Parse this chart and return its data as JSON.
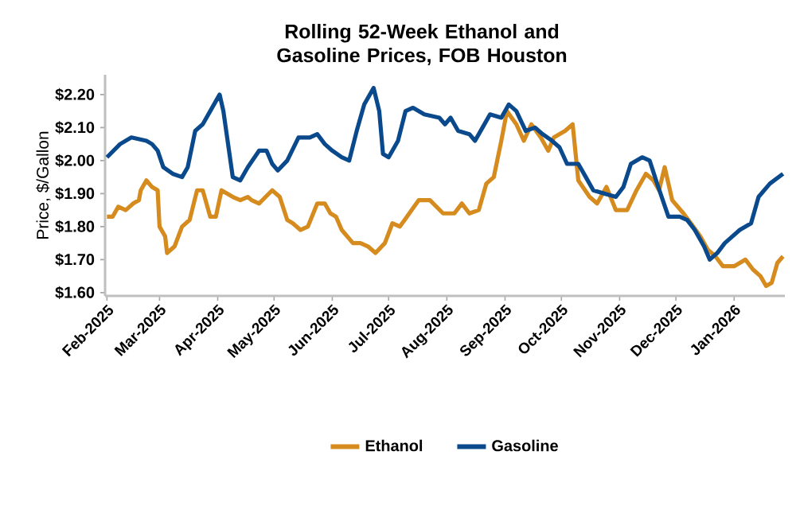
{
  "chart_data": {
    "type": "line",
    "title": "Rolling 52-Week Ethanol and Gasoline Prices, FOB Houston",
    "ylabel": "Price, $/Gallon",
    "xlim": [
      "2025-01-31",
      "2026-01-28"
    ],
    "ylim": [
      1.59,
      2.26
    ],
    "xticks": [
      {
        "value": "2025-02-01",
        "label": "Feb-2025"
      },
      {
        "value": "2025-03-01",
        "label": "Mar-2025"
      },
      {
        "value": "2025-04-01",
        "label": "Apr-2025"
      },
      {
        "value": "2025-05-01",
        "label": "May-2025"
      },
      {
        "value": "2025-06-01",
        "label": "Jun-2025"
      },
      {
        "value": "2025-07-01",
        "label": "Jul-2025"
      },
      {
        "value": "2025-08-01",
        "label": "Aug-2025"
      },
      {
        "value": "2025-09-01",
        "label": "Sep-2025"
      },
      {
        "value": "2025-10-01",
        "label": "Oct-2025"
      },
      {
        "value": "2025-11-01",
        "label": "Nov-2025"
      },
      {
        "value": "2025-12-01",
        "label": "Dec-2025"
      },
      {
        "value": "2026-01-01",
        "label": "Jan-2026"
      }
    ],
    "yticks": [
      {
        "value": 1.6,
        "label": "$1.60"
      },
      {
        "value": 1.7,
        "label": "$1.70"
      },
      {
        "value": 1.8,
        "label": "$1.80"
      },
      {
        "value": 1.9,
        "label": "$1.90"
      },
      {
        "value": 2.0,
        "label": "$2.00"
      },
      {
        "value": 2.1,
        "label": "$2.10"
      },
      {
        "value": 2.2,
        "label": "$2.20"
      }
    ],
    "legend": "bottom",
    "grid": false,
    "marker": "none",
    "line_style": "solid",
    "series": [
      {
        "name": "Ethanol",
        "color": "#d68b1f",
        "x": [
          "2025-02-01",
          "2025-02-04",
          "2025-02-07",
          "2025-02-11",
          "2025-02-15",
          "2025-02-18",
          "2025-02-19",
          "2025-02-22",
          "2025-02-25",
          "2025-02-28",
          "2025-03-01",
          "2025-03-04",
          "2025-03-05",
          "2025-03-09",
          "2025-03-13",
          "2025-03-17",
          "2025-03-21",
          "2025-03-24",
          "2025-03-28",
          "2025-03-31",
          "2025-04-03",
          "2025-04-09",
          "2025-04-13",
          "2025-04-17",
          "2025-04-19",
          "2025-04-23",
          "2025-04-30",
          "2025-05-04",
          "2025-05-08",
          "2025-05-11",
          "2025-05-15",
          "2025-05-19",
          "2025-05-24",
          "2025-05-28",
          "2025-05-31",
          "2025-06-03",
          "2025-06-06",
          "2025-06-12",
          "2025-06-16",
          "2025-06-20",
          "2025-06-24",
          "2025-06-29",
          "2025-07-03",
          "2025-07-07",
          "2025-07-12",
          "2025-07-17",
          "2025-07-23",
          "2025-07-30",
          "2025-08-05",
          "2025-08-09",
          "2025-08-13",
          "2025-08-18",
          "2025-08-22",
          "2025-08-26",
          "2025-08-30",
          "2025-09-02",
          "2025-09-07",
          "2025-09-11",
          "2025-09-15",
          "2025-09-20",
          "2025-09-24",
          "2025-09-27",
          "2025-10-03",
          "2025-10-07",
          "2025-10-10",
          "2025-10-16",
          "2025-10-20",
          "2025-10-25",
          "2025-10-30",
          "2025-11-05",
          "2025-11-10",
          "2025-11-15",
          "2025-11-19",
          "2025-11-22",
          "2025-11-25",
          "2025-11-29",
          "2025-12-05",
          "2025-12-09",
          "2025-12-14",
          "2025-12-18",
          "2025-12-22",
          "2025-12-26",
          "2026-01-01",
          "2026-01-07",
          "2026-01-11",
          "2026-01-15",
          "2026-01-18",
          "2026-01-21",
          "2026-01-24",
          "2026-01-27"
        ],
        "values": [
          1.83,
          1.83,
          1.86,
          1.85,
          1.87,
          1.88,
          1.91,
          1.94,
          1.92,
          1.91,
          1.8,
          1.77,
          1.72,
          1.74,
          1.8,
          1.82,
          1.91,
          1.91,
          1.83,
          1.83,
          1.91,
          1.89,
          1.88,
          1.89,
          1.88,
          1.87,
          1.91,
          1.89,
          1.82,
          1.81,
          1.79,
          1.8,
          1.87,
          1.87,
          1.84,
          1.83,
          1.79,
          1.75,
          1.75,
          1.74,
          1.72,
          1.75,
          1.81,
          1.8,
          1.84,
          1.88,
          1.88,
          1.84,
          1.84,
          1.87,
          1.84,
          1.85,
          1.93,
          1.95,
          2.06,
          2.15,
          2.11,
          2.06,
          2.11,
          2.07,
          2.03,
          2.07,
          2.09,
          2.11,
          1.94,
          1.89,
          1.87,
          1.92,
          1.85,
          1.85,
          1.91,
          1.96,
          1.94,
          1.91,
          1.98,
          1.88,
          1.84,
          1.81,
          1.77,
          1.73,
          1.71,
          1.68,
          1.68,
          1.7,
          1.67,
          1.65,
          1.62,
          1.63,
          1.69,
          1.71
        ]
      },
      {
        "name": "Gasoline",
        "color": "#0a4a8c",
        "x": [
          "2025-02-01",
          "2025-02-08",
          "2025-02-14",
          "2025-02-22",
          "2025-02-25",
          "2025-02-28",
          "2025-03-03",
          "2025-03-08",
          "2025-03-13",
          "2025-03-16",
          "2025-03-20",
          "2025-03-24",
          "2025-03-28",
          "2025-04-02",
          "2025-04-04",
          "2025-04-09",
          "2025-04-13",
          "2025-04-17",
          "2025-04-23",
          "2025-04-27",
          "2025-04-30",
          "2025-05-03",
          "2025-05-08",
          "2025-05-14",
          "2025-05-20",
          "2025-05-24",
          "2025-05-28",
          "2025-06-01",
          "2025-06-06",
          "2025-06-10",
          "2025-06-14",
          "2025-06-18",
          "2025-06-23",
          "2025-06-26",
          "2025-06-28",
          "2025-07-01",
          "2025-07-06",
          "2025-07-10",
          "2025-07-14",
          "2025-07-20",
          "2025-07-28",
          "2025-07-31",
          "2025-08-03",
          "2025-08-07",
          "2025-08-13",
          "2025-08-16",
          "2025-08-20",
          "2025-08-24",
          "2025-08-30",
          "2025-09-03",
          "2025-09-07",
          "2025-09-12",
          "2025-09-17",
          "2025-09-21",
          "2025-09-26",
          "2025-09-30",
          "2025-10-04",
          "2025-10-10",
          "2025-10-14",
          "2025-10-18",
          "2025-10-24",
          "2025-10-30",
          "2025-11-03",
          "2025-11-07",
          "2025-11-13",
          "2025-11-17",
          "2025-11-21",
          "2025-11-27",
          "2025-12-03",
          "2025-12-07",
          "2025-12-11",
          "2025-12-16",
          "2025-12-19",
          "2025-12-23",
          "2025-12-27",
          "2025-12-31",
          "2026-01-04",
          "2026-01-10",
          "2026-01-14",
          "2026-01-20",
          "2026-01-27"
        ],
        "values": [
          2.01,
          2.05,
          2.07,
          2.06,
          2.05,
          2.03,
          1.98,
          1.96,
          1.95,
          1.98,
          2.09,
          2.11,
          2.15,
          2.2,
          2.15,
          1.95,
          1.94,
          1.98,
          2.03,
          2.03,
          1.99,
          1.97,
          2.0,
          2.07,
          2.07,
          2.08,
          2.05,
          2.03,
          2.01,
          2.0,
          2.09,
          2.17,
          2.22,
          2.15,
          2.02,
          2.01,
          2.06,
          2.15,
          2.16,
          2.14,
          2.13,
          2.11,
          2.13,
          2.09,
          2.08,
          2.06,
          2.1,
          2.14,
          2.13,
          2.17,
          2.15,
          2.09,
          2.1,
          2.08,
          2.06,
          2.04,
          1.99,
          1.99,
          1.95,
          1.91,
          1.9,
          1.89,
          1.92,
          1.99,
          2.01,
          2.0,
          1.93,
          1.83,
          1.83,
          1.82,
          1.79,
          1.74,
          1.7,
          1.72,
          1.75,
          1.77,
          1.79,
          1.81,
          1.89,
          1.93,
          1.96
        ]
      }
    ]
  }
}
